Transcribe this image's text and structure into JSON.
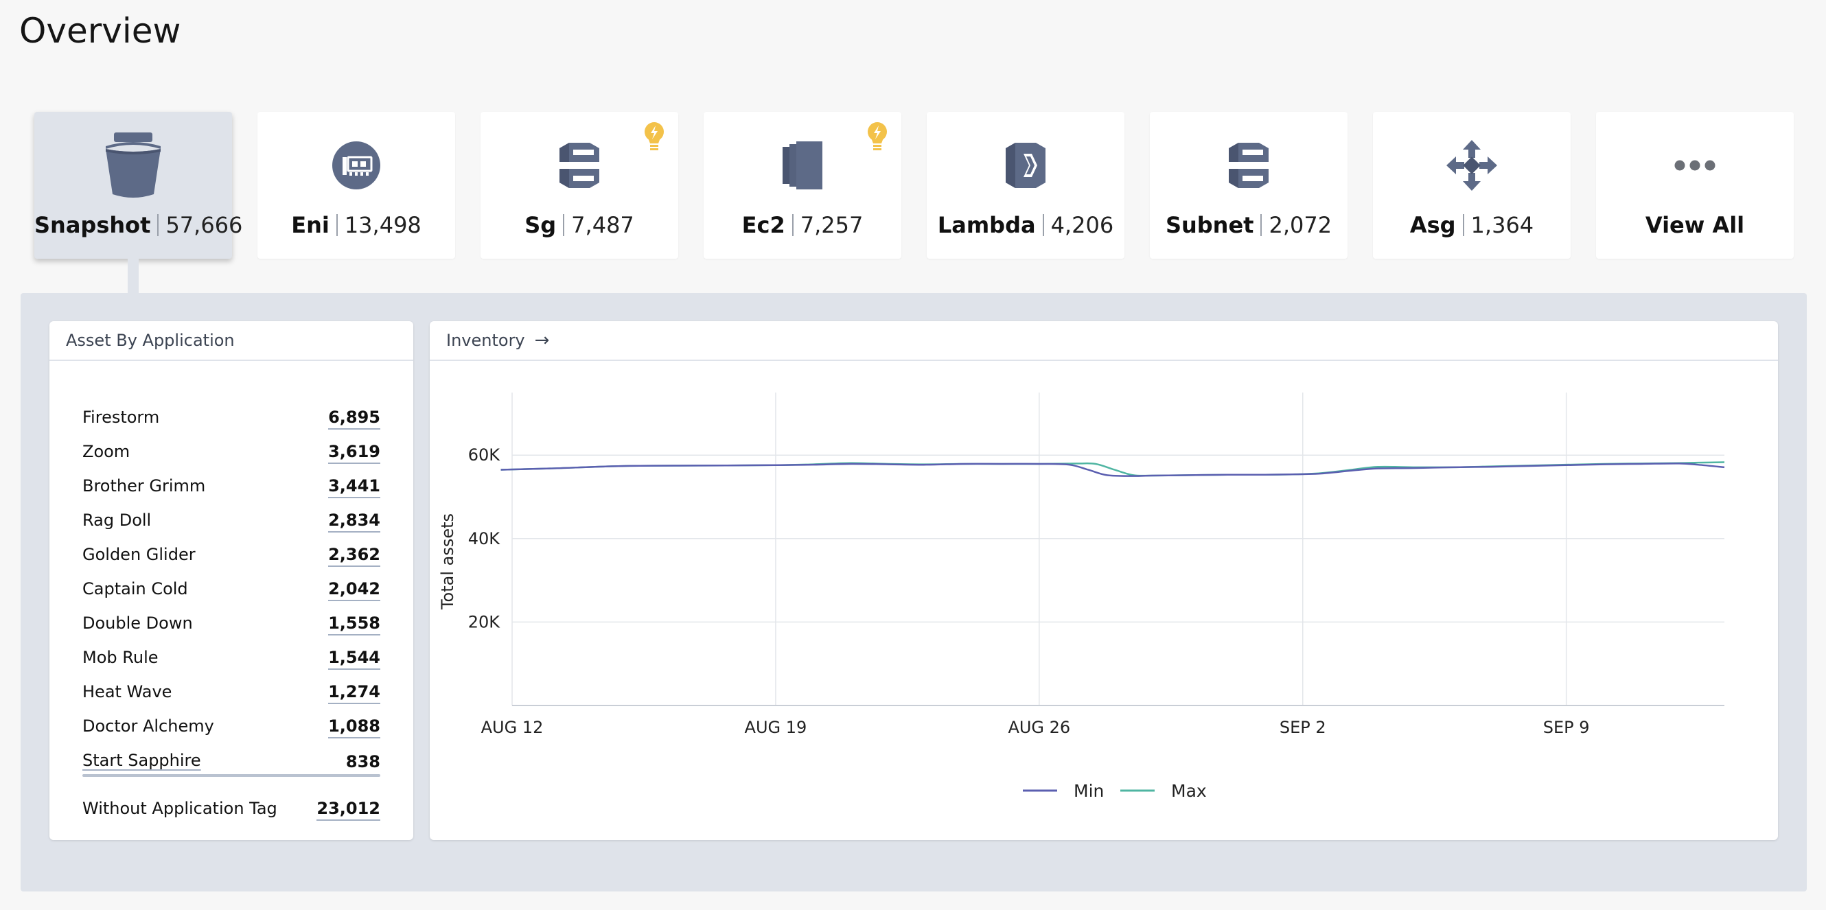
{
  "page": {
    "title": "Overview"
  },
  "tiles": [
    {
      "name": "Snapshot",
      "count": "57,666",
      "icon": "bucket-icon",
      "alert": false,
      "active": true
    },
    {
      "name": "Eni",
      "count": "13,498",
      "icon": "network-card-icon",
      "alert": false,
      "active": false
    },
    {
      "name": "Sg",
      "count": "7,487",
      "icon": "security-group-icon",
      "alert": true,
      "active": false
    },
    {
      "name": "Ec2",
      "count": "7,257",
      "icon": "ec2-icon",
      "alert": true,
      "active": false
    },
    {
      "name": "Lambda",
      "count": "4,206",
      "icon": "lambda-icon",
      "alert": false,
      "active": false
    },
    {
      "name": "Subnet",
      "count": "2,072",
      "icon": "subnet-icon",
      "alert": false,
      "active": false
    },
    {
      "name": "Asg",
      "count": "1,364",
      "icon": "auto-scaling-icon",
      "alert": false,
      "active": false
    },
    {
      "name": "View All",
      "icon": "ellipsis-icon"
    }
  ],
  "asset_by_application": {
    "title": "Asset By Application",
    "rows": [
      {
        "name": "Firestorm",
        "value": "6,895"
      },
      {
        "name": "Zoom",
        "value": "3,619"
      },
      {
        "name": "Brother Grimm",
        "value": "3,441"
      },
      {
        "name": "Rag Doll",
        "value": "2,834"
      },
      {
        "name": "Golden Glider",
        "value": "2,362"
      },
      {
        "name": "Captain Cold",
        "value": "2,042"
      },
      {
        "name": "Double Down",
        "value": "1,558"
      },
      {
        "name": "Mob Rule",
        "value": "1,544"
      },
      {
        "name": "Heat Wave",
        "value": "1,274"
      },
      {
        "name": "Doctor Alchemy",
        "value": "1,088"
      },
      {
        "name": "Start Sapphire",
        "value": "838"
      }
    ],
    "total": {
      "name": "Without Application Tag",
      "value": "23,012"
    }
  },
  "inventory": {
    "title": "Inventory",
    "arrow": "→"
  },
  "chart_data": {
    "type": "line",
    "title": "",
    "xlabel": "",
    "ylabel": "Total assets",
    "ylim": [
      0,
      75000
    ],
    "yticks": [
      20000,
      40000,
      60000
    ],
    "ytick_labels": [
      "20K",
      "40K",
      "60K"
    ],
    "xlim": [
      0,
      32.2
    ],
    "xticks": [
      0,
      7,
      14,
      21,
      28
    ],
    "xtick_labels": [
      "AUG 12",
      "AUG 19",
      "AUG 26",
      "SEP 2",
      "SEP 9"
    ],
    "legend": "bottom-center",
    "series": [
      {
        "name": "Min",
        "color": "#5b5fb0",
        "x": [
          -0.3,
          1,
          3,
          5,
          7,
          8,
          9,
          10,
          11,
          12,
          13,
          14,
          14.8,
          15.3,
          15.8,
          16.5,
          17,
          18,
          19,
          20,
          20.8,
          21.5,
          22.3,
          23,
          24,
          25,
          26,
          27,
          28,
          29,
          30,
          31,
          31.5,
          32.2
        ],
        "y": [
          56500,
          56800,
          57400,
          57500,
          57600,
          57700,
          57900,
          57800,
          57700,
          57900,
          57900,
          57900,
          57700,
          56500,
          55200,
          55000,
          55100,
          55200,
          55300,
          55300,
          55400,
          55600,
          56300,
          56800,
          56900,
          57100,
          57200,
          57400,
          57600,
          57800,
          57900,
          58000,
          57700,
          57100
        ]
      },
      {
        "name": "Max",
        "color": "#4fb5a2",
        "x": [
          -0.3,
          1,
          3,
          5,
          7,
          8,
          9,
          10,
          11,
          12,
          13,
          14,
          15,
          15.5,
          16,
          16.5,
          17,
          18,
          19,
          20,
          20.8,
          21.5,
          22.3,
          23,
          24,
          25,
          26,
          27,
          28,
          29,
          30,
          31,
          31.5,
          32.2
        ],
        "y": [
          56500,
          56800,
          57400,
          57500,
          57600,
          57800,
          58100,
          57900,
          57800,
          57900,
          57900,
          57900,
          58000,
          57900,
          56500,
          55200,
          55100,
          55200,
          55300,
          55300,
          55400,
          55700,
          56500,
          57200,
          57100,
          57100,
          57300,
          57500,
          57700,
          57900,
          58000,
          58100,
          58200,
          58300
        ]
      }
    ]
  }
}
